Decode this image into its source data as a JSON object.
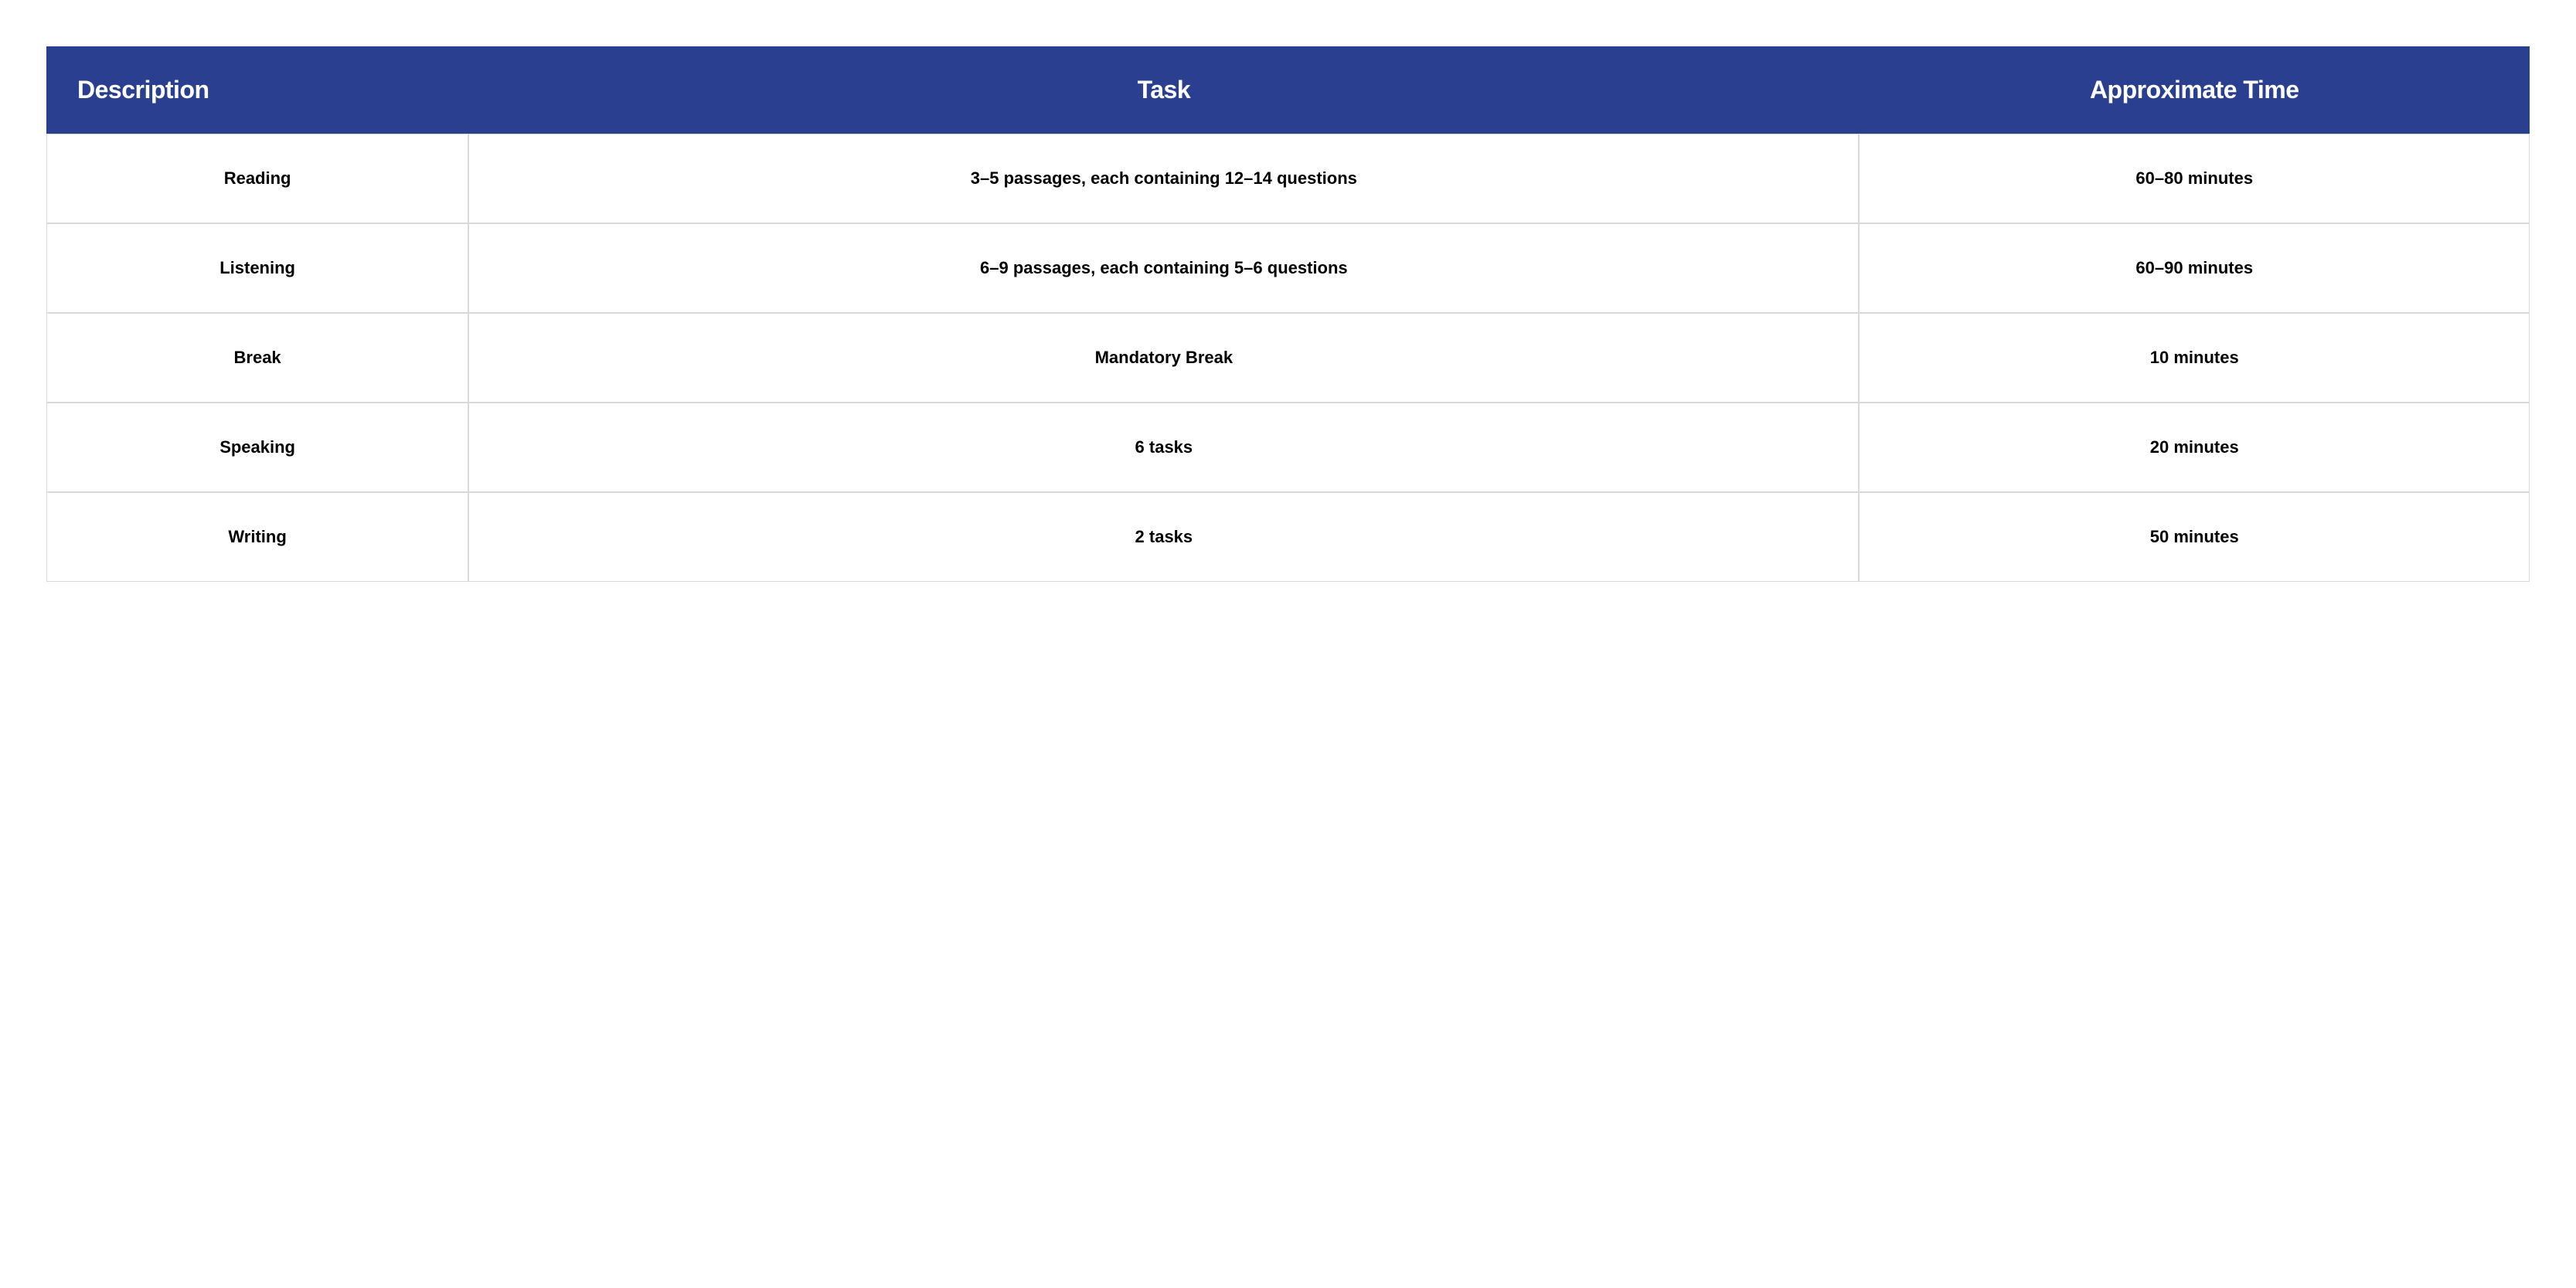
{
  "table": {
    "type": "table",
    "styling": {
      "header_bg": "#2a3f8f",
      "header_text": "#ffffff",
      "cell_bg": "#ffffff",
      "cell_text": "#000000",
      "border_color": "#d9d9d9",
      "header_fontsize": 32,
      "cell_fontsize": 22,
      "header_fontweight": 700,
      "cell_fontweight": 700,
      "col_widths_pct": [
        17,
        56,
        27
      ]
    },
    "columns": [
      "Description",
      "Task",
      "Approximate Time"
    ],
    "rows": [
      {
        "description": "Reading",
        "task": "3–5 passages, each containing 12–14 questions",
        "time": "60–80 minutes"
      },
      {
        "description": "Listening",
        "task": "6–9 passages, each containing 5–6 questions",
        "time": "60–90 minutes"
      },
      {
        "description": "Break",
        "task": "Mandatory Break",
        "time": "10 minutes"
      },
      {
        "description": "Speaking",
        "task": "6 tasks",
        "time": "20 minutes"
      },
      {
        "description": "Writing",
        "task": "2 tasks",
        "time": "50 minutes"
      }
    ]
  }
}
